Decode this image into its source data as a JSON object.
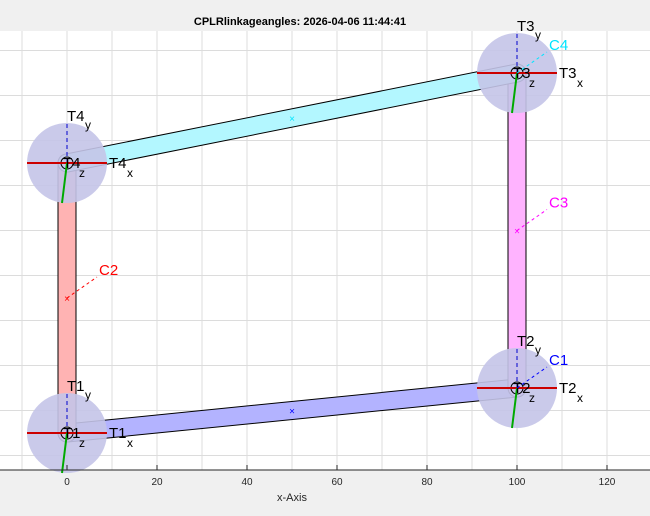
{
  "figure": {
    "title": "CPLRlinkageangles: 2026-04-06 11:44:41",
    "xlabel": "x-Axis",
    "xlim": [
      -15,
      130
    ],
    "ylim": [
      -8,
      102
    ],
    "grid": true,
    "xticks": [
      "0",
      "20",
      "40",
      "60",
      "80",
      "100",
      "120"
    ]
  },
  "chart_data": {
    "type": "linkage-diagram",
    "joints": [
      {
        "name": "T1",
        "x": 0,
        "y": 0
      },
      {
        "name": "T2",
        "x": 100,
        "y": 10
      },
      {
        "name": "T3",
        "x": 100,
        "y": 80
      },
      {
        "name": "T4",
        "x": 0,
        "y": 60
      }
    ],
    "links": [
      {
        "name": "C1",
        "from": "T1",
        "to": "T2",
        "color": "#0000ff"
      },
      {
        "name": "C2",
        "from": "T1",
        "to": "T4",
        "color": "#ff0000"
      },
      {
        "name": "C3",
        "from": "T2",
        "to": "T3",
        "color": "#ff00ff"
      },
      {
        "name": "C4",
        "from": "T4",
        "to": "T3",
        "color": "#00e5ff"
      }
    ],
    "frame_labels": {
      "x": "x",
      "y": "y",
      "z": "z"
    }
  }
}
